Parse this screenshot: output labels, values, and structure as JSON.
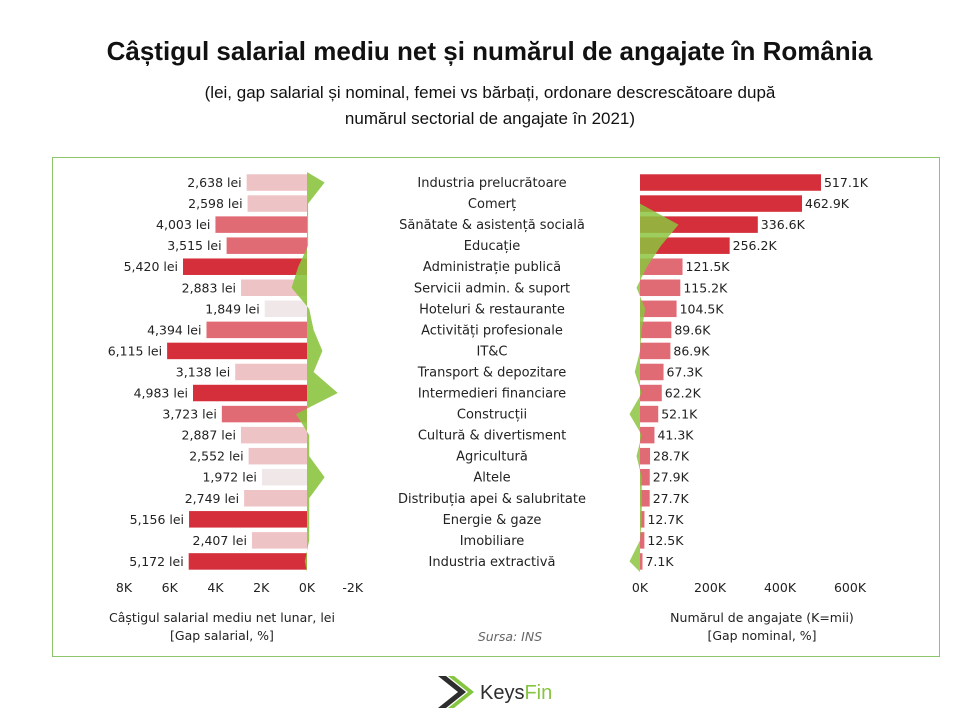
{
  "title": "Câștigul salarial mediu net și numărul de angajate în România",
  "subtitle_line1": "(lei, gap salarial și nominal, femei vs bărbați, ordonare descrescătoare după",
  "subtitle_line2": "numărul sectorial de angajate în 2021)",
  "source": "Sursa: INS",
  "brand": {
    "keys": "Keys",
    "fin": "Fin"
  },
  "colors": {
    "bar_dark": "#d42f3a",
    "bar_mid": "#e06b74",
    "bar_light": "#eec3c6",
    "bar_pale": "#efe7e8",
    "gap_green": "#8cc43f",
    "frame_green": "#8cc56a",
    "logo_dark": "#2d2d2d",
    "logo_green": "#86c540"
  },
  "chart_data": [
    {
      "type": "bar",
      "orientation": "horizontal",
      "name": "salary",
      "xlabel": "Câștigul salarial mediu net lunar, lei",
      "xlabel2": "[Gap salarial, %]",
      "xlim": [
        8000,
        -2000
      ],
      "ticks": [
        8000,
        6000,
        4000,
        2000,
        0,
        -2000
      ],
      "tick_labels": [
        "8K",
        "6K",
        "4K",
        "2K",
        "0K",
        "-2K"
      ],
      "categories": [
        "Industria prelucrătoare",
        "Comerț",
        "Sănătate & asistență socială",
        "Educație",
        "Administrație publică",
        "Servicii admin. & suport",
        "Hoteluri & restaurante",
        "Activități profesionale",
        "IT&C",
        "Transport & depozitare",
        "Intermedieri financiare",
        "Construcții",
        "Cultură & divertisment",
        "Agricultură",
        "Altele",
        "Distribuția apei & salubritate",
        "Energie & gaze",
        "Imobiliare",
        "Industria extractivă"
      ],
      "values": [
        2638,
        2598,
        4003,
        3515,
        5420,
        2883,
        1849,
        4394,
        6115,
        3138,
        4983,
        3723,
        2887,
        2552,
        1972,
        2749,
        5156,
        2407,
        5172
      ],
      "labels": [
        "2,638 lei",
        "2,598 lei",
        "4,003 lei",
        "3,515 lei",
        "5,420 lei",
        "2,883 lei",
        "1,849 lei",
        "4,394 lei",
        "6,115 lei",
        "3,138 lei",
        "4,983 lei",
        "3,723 lei",
        "2,887 lei",
        "2,552 lei",
        "1,972 lei",
        "2,749 lei",
        "5,156 lei",
        "2,407 lei",
        "5,172 lei"
      ],
      "gap_values": [
        -8,
        -0.5,
        -0.5,
        -0.5,
        4,
        7,
        -1,
        -3,
        -7,
        -3,
        -14,
        5,
        -1,
        -1,
        -8,
        -1,
        -1,
        -1,
        1
      ]
    },
    {
      "type": "bar",
      "orientation": "horizontal",
      "name": "employees",
      "xlabel": "Numărul de angajate (K=mii)",
      "xlabel2": "[Gap nominal, %]",
      "xlim": [
        0,
        600000
      ],
      "ticks": [
        0,
        200000,
        400000,
        600000
      ],
      "tick_labels": [
        "0K",
        "200K",
        "400K",
        "600K"
      ],
      "categories": [
        "Industria prelucrătoare",
        "Comerț",
        "Sănătate & asistență socială",
        "Educație",
        "Administrație publică",
        "Servicii admin. & suport",
        "Hoteluri & restaurante",
        "Activități profesionale",
        "IT&C",
        "Transport & depozitare",
        "Intermedieri financiare",
        "Construcții",
        "Cultură & divertisment",
        "Agricultură",
        "Altele",
        "Distribuția apei & salubritate",
        "Energie & gaze",
        "Imobiliare",
        "Industria extractivă"
      ],
      "values": [
        517100,
        462900,
        336600,
        256200,
        121500,
        115200,
        104500,
        89600,
        86900,
        67300,
        62200,
        52100,
        41300,
        28700,
        27900,
        27700,
        12700,
        12500,
        7100
      ],
      "labels": [
        "517.1K",
        "462.9K",
        "336.6K",
        "256.2K",
        "121.5K",
        "115.2K",
        "104.5K",
        "89.6K",
        "86.9K",
        "67.3K",
        "62.2K",
        "52.1K",
        "41.3K",
        "28.7K",
        "27.9K",
        "27.7K",
        "12.7K",
        "12.5K",
        "7.1K"
      ],
      "gap_values": [
        0,
        0,
        110000,
        60000,
        20000,
        -10000,
        15000,
        5000,
        0,
        -15000,
        5000,
        -30000,
        5000,
        -10000,
        5000,
        5000,
        5000,
        0,
        -30000
      ]
    }
  ]
}
